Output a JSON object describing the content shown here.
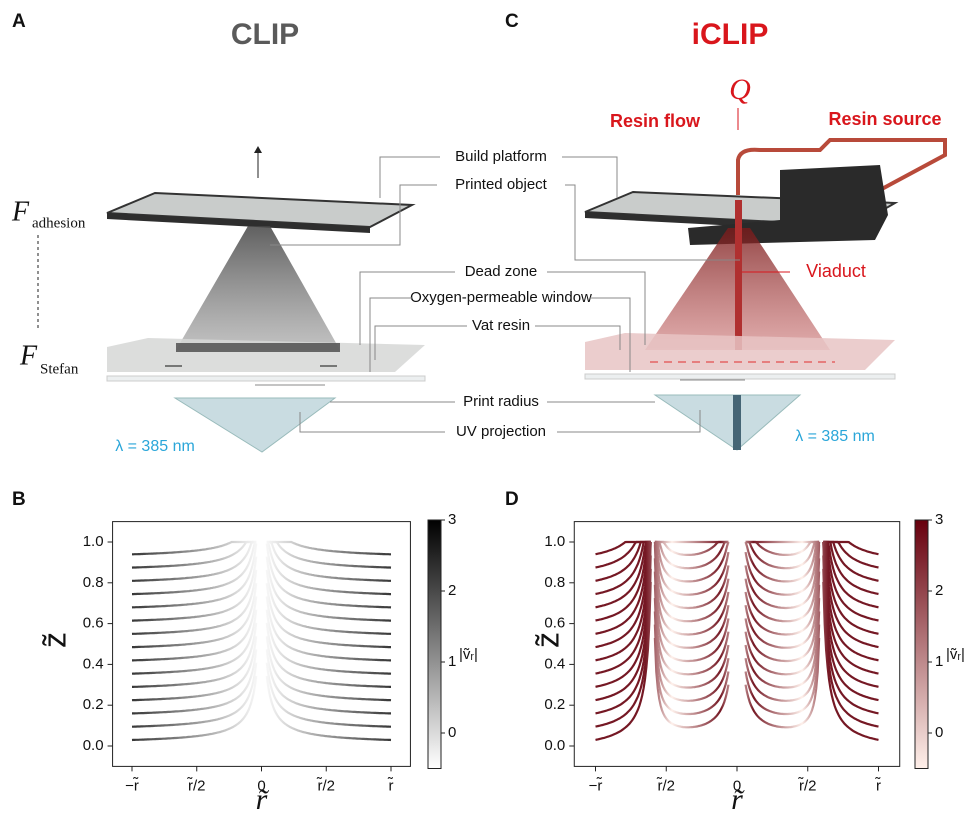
{
  "panel_a": {
    "letter": "A",
    "title": "CLIP",
    "force_top": "F",
    "force_top_sub": "adhesion",
    "force_bottom": "F",
    "force_bottom_sub": "Stefan",
    "wavelength": "λ = 385 nm"
  },
  "panel_c": {
    "letter": "C",
    "title": "iCLIP",
    "flow_symbol": "Q",
    "resin_flow": "Resin flow",
    "resin_source": "Resin source",
    "viaduct": "Viaduct",
    "wavelength": "λ = 385 nm"
  },
  "callouts": [
    "Build platform",
    "Printed object",
    "Dead zone",
    "Oxygen-permeable window",
    "Vat resin",
    "Print radius",
    "UV projection"
  ],
  "chart_data": [
    {
      "type": "streamplot",
      "letter": "B",
      "xlabel": "r̃",
      "ylabel": "z̃",
      "xlim": [
        -1.15,
        1.15
      ],
      "ylim": [
        -0.1,
        1.1
      ],
      "xticks": [
        {
          "value": -1,
          "label": "−r̃"
        },
        {
          "value": -0.5,
          "label": "r̃/2"
        },
        0,
        {
          "value": 0.5,
          "label": "r̃/2"
        },
        {
          "value": 1,
          "label": "r̃"
        }
      ],
      "yticks": [
        {
          "value": 0,
          "label": "0.0"
        },
        {
          "value": 0.2,
          "label": "0.2"
        },
        {
          "value": 0.4,
          "label": "0.4"
        },
        {
          "value": 0.6,
          "label": "0.6"
        },
        {
          "value": 0.8,
          "label": "0.8"
        },
        {
          "value": 1,
          "label": "1.0"
        }
      ],
      "colorbar": {
        "label": "|ṽᵣ|",
        "lim": [
          -0.5,
          3
        ],
        "ticks": [
          0,
          1,
          2,
          3
        ],
        "colors": [
          "#ffffff",
          "#000000"
        ]
      }
    },
    {
      "type": "streamplot",
      "letter": "D",
      "xlabel": "r̃",
      "ylabel": "z̃",
      "xlim": [
        -1.15,
        1.15
      ],
      "ylim": [
        -0.1,
        1.1
      ],
      "xticks": [
        {
          "value": -1,
          "label": "−r̃"
        },
        {
          "value": -0.5,
          "label": "r̃/2"
        },
        0,
        {
          "value": 0.5,
          "label": "r̃/2"
        },
        {
          "value": 1,
          "label": "r̃"
        }
      ],
      "yticks": [
        {
          "value": 0,
          "label": "0.0"
        },
        {
          "value": 0.2,
          "label": "0.2"
        },
        {
          "value": 0.4,
          "label": "0.4"
        },
        {
          "value": 0.6,
          "label": "0.6"
        },
        {
          "value": 0.8,
          "label": "0.8"
        },
        {
          "value": 1,
          "label": "1.0"
        }
      ],
      "colorbar": {
        "label": "|ṽᵣ|",
        "lim": [
          -0.5,
          3
        ],
        "ticks": [
          0,
          1,
          2,
          3
        ],
        "colors": [
          "#fff0ea",
          "#67000d"
        ]
      }
    }
  ]
}
